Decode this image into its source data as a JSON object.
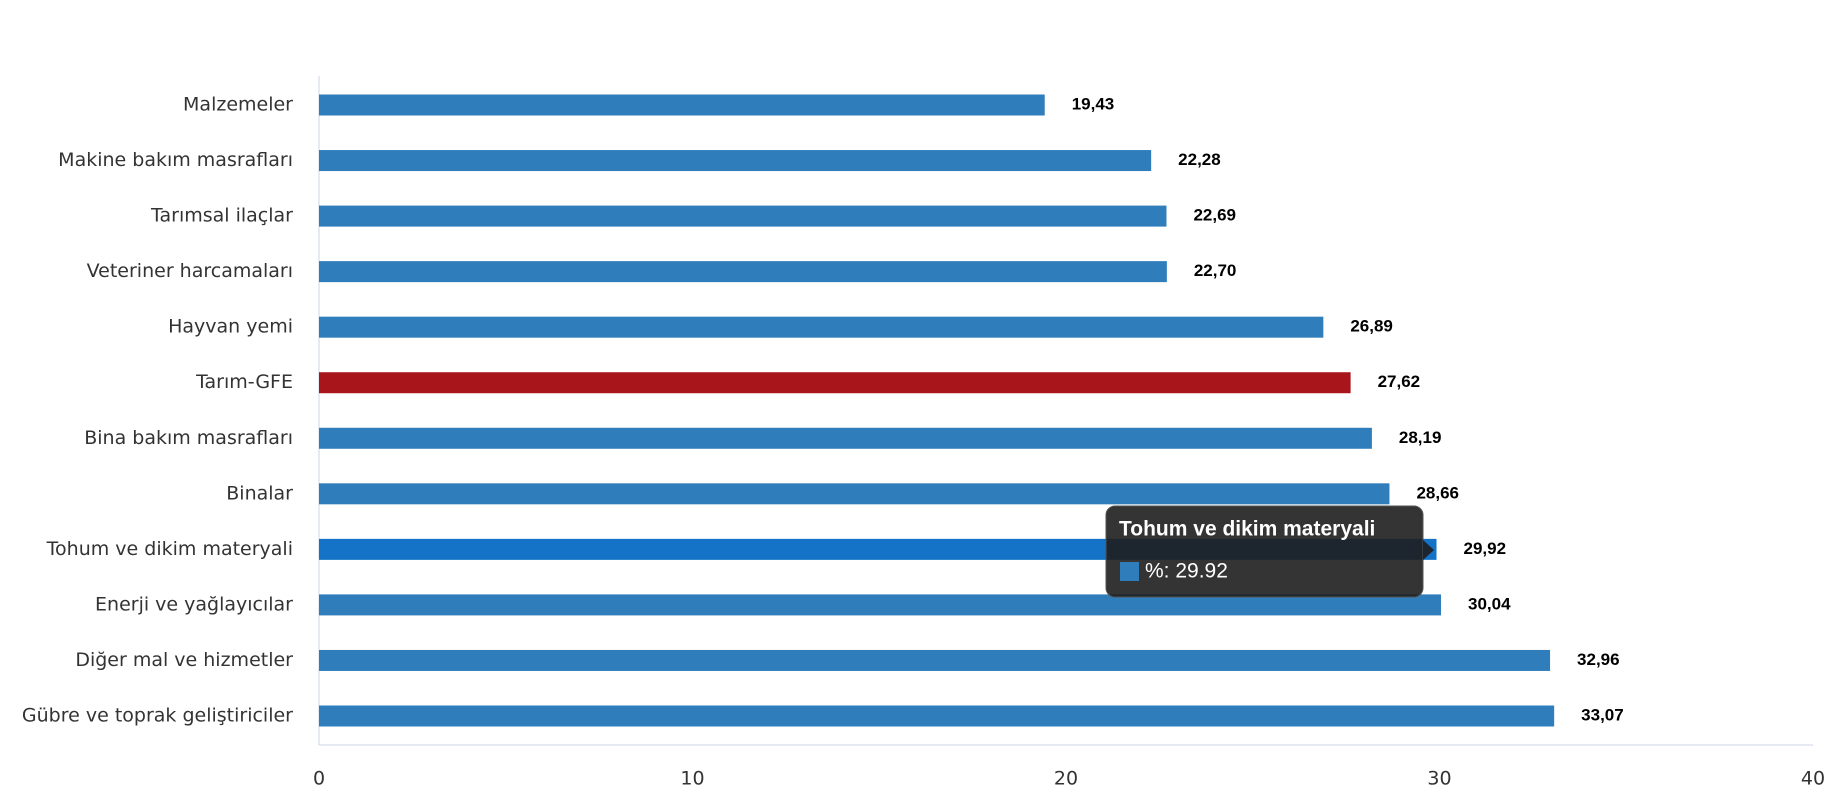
{
  "chart_data": {
    "type": "hbar",
    "categories": [
      "Malzemeler",
      "Makine bakım masrafları",
      "Tarımsal ilaçlar",
      "Veteriner harcamaları",
      "Hayvan yemi",
      "Tarım-GFE",
      "Bina bakım masrafları",
      "Binalar",
      "Tohum ve dikim materyali",
      "Enerji  ve yağlayıcılar",
      "Diğer mal ve hizmetler",
      "Gübre ve toprak geliştiriciler"
    ],
    "values": [
      19.43,
      22.28,
      22.69,
      22.7,
      26.89,
      27.62,
      28.19,
      28.66,
      29.92,
      30.04,
      32.96,
      33.07
    ],
    "value_labels": [
      "19,43",
      "22,28",
      "22,69",
      "22,70",
      "26,89",
      "27,62",
      "28,19",
      "28,66",
      "29,92",
      "30,04",
      "32,96",
      "33,07"
    ],
    "colors": [
      "#2f7dba",
      "#2f7dba",
      "#2f7dba",
      "#2f7dba",
      "#2f7dba",
      "#a8151b",
      "#2f7dba",
      "#2f7dba",
      "#1473c6",
      "#2f7dba",
      "#2f7dba",
      "#2f7dba"
    ],
    "xlim": [
      0,
      40
    ],
    "xticks": [
      0,
      10,
      20,
      30,
      40
    ],
    "grid": false,
    "tooltip": {
      "title": "Tohum ve dikim materyali",
      "text": "%: 29.92",
      "color": "#2f7dba"
    }
  }
}
